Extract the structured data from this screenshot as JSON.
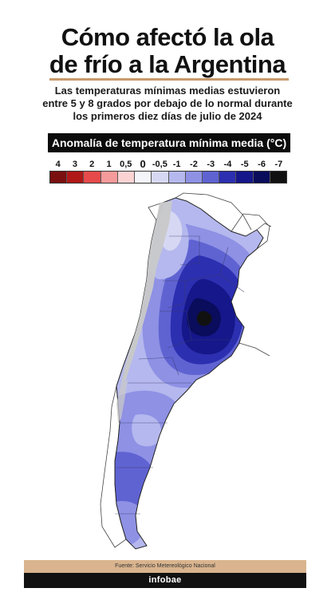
{
  "header": {
    "title_line1": "Cómo afectó la ola",
    "title_line2": "de frío a la Argentina",
    "subtitle_line1": "Las temperaturas mínimas medias estuvieron",
    "subtitle_line2": "entre 5 y 8 grados por debajo de lo normal durante",
    "subtitle_line3": "los primeros diez días de julio de 2024"
  },
  "legend": {
    "title": "Anomalía de temperatura mínima media (°C)",
    "labels": [
      "4",
      "3",
      "2",
      "1",
      "0,5",
      "0",
      "-0,5",
      "-1",
      "-2",
      "-3",
      "-4",
      "-5",
      "-6",
      "-7"
    ],
    "colors": [
      "#7a1010",
      "#b01717",
      "#e64a4a",
      "#f59a9a",
      "#fbd3d3",
      "#f4f4fb",
      "#d6d8f3",
      "#b5b8ee",
      "#8e91e4",
      "#5f63d2",
      "#2c2fb0",
      "#15178a",
      "#0a0c5c",
      "#111111"
    ]
  },
  "map": {
    "mountain_color": "#c9c9c9",
    "land_outside_color": "#ffffff",
    "ocean_color": "#ffffff"
  },
  "footer": {
    "source": "Fuente: Servicio Metereológico Nacional",
    "brand": "infobae"
  }
}
